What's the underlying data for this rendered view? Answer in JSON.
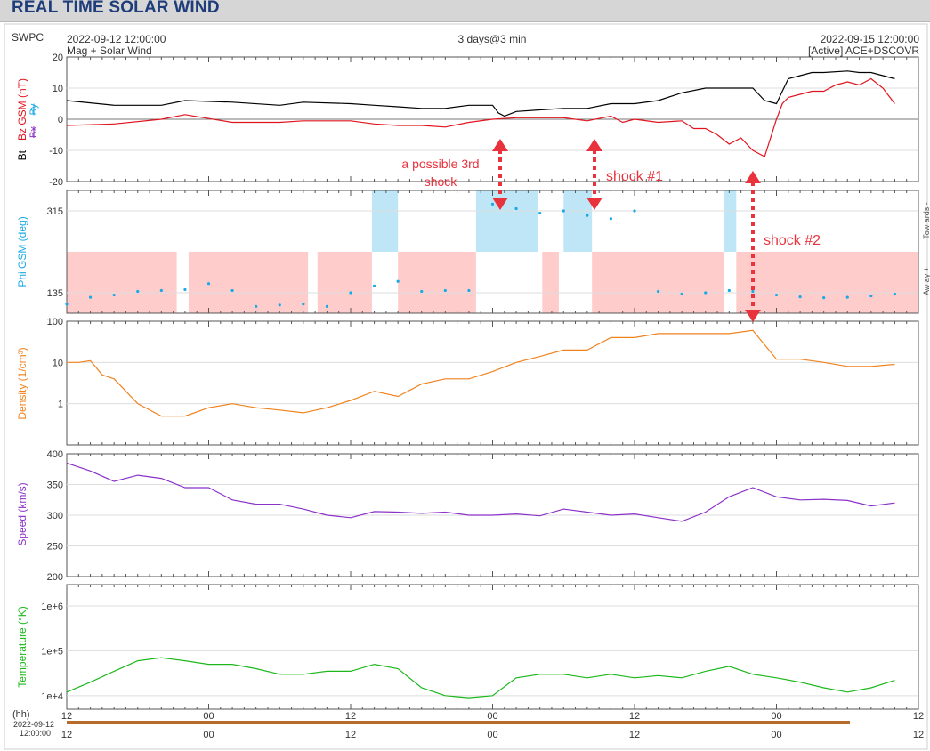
{
  "page_title": "REAL TIME SOLAR WIND",
  "header": {
    "source": "SWPC",
    "start": "2022-09-12 12:00:00",
    "span": "3 days@3 min",
    "end": "2022-09-15 12:00:00",
    "subtitle_left": "Mag + Solar Wind",
    "subtitle_right": "[Active] ACE+DSCOVR"
  },
  "annotations": [
    {
      "text": "a possible 3rd",
      "color": "#e8323c"
    },
    {
      "text": "shock",
      "color": "#e8323c"
    },
    {
      "text": "shock #1",
      "color": "#e8323c"
    },
    {
      "text": "shock #2",
      "color": "#e8323c"
    }
  ],
  "x_axis": {
    "hh_label": "(hh)",
    "date_label": "2022-09-12",
    "time_label": "12:00:00",
    "ticks": [
      "12",
      "00",
      "12",
      "00",
      "12",
      "00",
      "12"
    ]
  },
  "colors": {
    "bt": "#000000",
    "bz": "#e0141e",
    "by": "#8e44ad",
    "phi": "#19a9e5",
    "density": "#f0821e",
    "speed": "#8b32c8",
    "temperature": "#1cb81c",
    "away_fill": "#ffcccc",
    "toward_fill": "#bfe6f7"
  },
  "chart_data": [
    {
      "type": "line",
      "panel": "magnetic field",
      "ylabel_parts": [
        "Bt",
        "Bz GSM (nT)",
        "Bx",
        "By"
      ],
      "ylim": [
        -20,
        20
      ],
      "yticks": [
        "20",
        "10",
        "0",
        "-10",
        "-20"
      ],
      "xlim_hours": [
        0,
        72
      ],
      "series": [
        {
          "name": "Bt",
          "color": "#000000",
          "x": [
            0,
            4,
            8,
            10,
            14,
            18,
            20,
            24,
            26,
            28,
            30,
            32,
            34,
            36,
            36.5,
            37,
            38,
            40,
            42,
            44,
            46,
            47,
            48,
            50,
            52,
            54,
            56,
            58,
            59,
            60,
            60.5,
            61,
            62,
            63,
            64,
            66,
            67,
            68,
            69,
            70
          ],
          "y": [
            6,
            4.5,
            4.5,
            6,
            5.5,
            4.5,
            5.5,
            5,
            4.5,
            4,
            3.5,
            3.5,
            4.5,
            4.5,
            2,
            1,
            2.5,
            3,
            3.5,
            3.5,
            5,
            5,
            5,
            6,
            8.5,
            10,
            10,
            10,
            6,
            5,
            9,
            13,
            14,
            15,
            15,
            15.5,
            15,
            15,
            14,
            13
          ]
        },
        {
          "name": "Bz GSM",
          "color": "#e0141e",
          "x": [
            0,
            4,
            8,
            10,
            14,
            18,
            20,
            24,
            26,
            28,
            30,
            32,
            34,
            36,
            38,
            40,
            42,
            44,
            46,
            47,
            48,
            50,
            52,
            53,
            54,
            55,
            56,
            57,
            58,
            59,
            60,
            60.5,
            61,
            62,
            63,
            64,
            65,
            66,
            67,
            68,
            69,
            70
          ],
          "y": [
            -2,
            -1.5,
            0,
            1.5,
            -1,
            -1,
            -0.5,
            -0.5,
            -1.5,
            -2,
            -2,
            -2.5,
            -1,
            0,
            0.5,
            0.5,
            0.5,
            -0.5,
            1,
            -1,
            0,
            -1,
            -0.5,
            -3,
            -3,
            -5,
            -8,
            -6,
            -10,
            -12,
            0,
            5,
            7,
            8,
            9,
            9,
            11,
            12,
            11,
            13,
            10,
            5
          ]
        }
      ]
    },
    {
      "type": "scatter",
      "panel": "phi",
      "ylabel": "Phi GSM (deg)",
      "ylim": [
        90,
        360
      ],
      "yticks": [
        "315",
        "135"
      ],
      "right_labels": [
        "Tow ards -",
        "Aw ay +"
      ],
      "series": [
        {
          "name": "Phi",
          "color": "#19a9e5",
          "x": [
            0,
            2,
            4,
            6,
            8,
            10,
            12,
            14,
            16,
            18,
            20,
            22,
            24,
            26,
            28,
            30,
            32,
            34,
            36,
            38,
            40,
            42,
            44,
            46,
            48,
            50,
            52,
            54,
            56,
            58,
            60,
            62,
            64,
            66,
            68,
            70
          ],
          "y": [
            110,
            125,
            130,
            138,
            140,
            142,
            155,
            140,
            105,
            108,
            110,
            105,
            135,
            150,
            160,
            138,
            140,
            140,
            330,
            320,
            310,
            315,
            305,
            298,
            315,
            138,
            132,
            135,
            140,
            138,
            130,
            126,
            124,
            125,
            128,
            132
          ]
        }
      ],
      "sector_bands": [
        {
          "sector": "away",
          "from": 0,
          "to": 9.3
        },
        {
          "sector": "away",
          "from": 10.3,
          "to": 20.4
        },
        {
          "sector": "away",
          "from": 21.2,
          "to": 25.8
        },
        {
          "sector": "toward",
          "from": 25.8,
          "to": 28
        },
        {
          "sector": "away",
          "from": 28,
          "to": 34.6
        },
        {
          "sector": "toward",
          "from": 34.6,
          "to": 39.8
        },
        {
          "sector": "away",
          "from": 40.2,
          "to": 41.6
        },
        {
          "sector": "toward",
          "from": 42,
          "to": 44.4
        },
        {
          "sector": "away",
          "from": 44.4,
          "to": 55.6
        },
        {
          "sector": "toward",
          "from": 55.6,
          "to": 56.6
        },
        {
          "sector": "away",
          "from": 56.6,
          "to": 72
        }
      ]
    },
    {
      "type": "line",
      "panel": "density",
      "ylabel": "Density (1/cm³)",
      "yscale": "log",
      "ylim": [
        0.1,
        100
      ],
      "yticks": [
        "100",
        "10",
        "1"
      ],
      "series": [
        {
          "name": "Density",
          "color": "#f0821e",
          "x": [
            0,
            1,
            2,
            3,
            4,
            6,
            8,
            10,
            12,
            14,
            16,
            18,
            20,
            22,
            24,
            26,
            28,
            30,
            32,
            34,
            36,
            38,
            40,
            42,
            44,
            46,
            48,
            50,
            52,
            54,
            56,
            58,
            60,
            62,
            64,
            66,
            68,
            70
          ],
          "y": [
            10,
            10,
            11,
            5,
            4,
            1,
            0.5,
            0.5,
            0.8,
            1,
            0.8,
            0.7,
            0.6,
            0.8,
            1.2,
            2,
            1.5,
            3,
            4,
            4,
            6,
            10,
            14,
            20,
            20,
            40,
            40,
            50,
            50,
            50,
            50,
            60,
            12,
            12,
            10,
            8,
            8,
            9
          ]
        }
      ]
    },
    {
      "type": "line",
      "panel": "speed",
      "ylabel": "Speed (km/s)",
      "ylim": [
        200,
        400
      ],
      "yticks": [
        "400",
        "350",
        "300",
        "250",
        "200"
      ],
      "series": [
        {
          "name": "Speed",
          "color": "#8b32c8",
          "x": [
            0,
            2,
            4,
            6,
            8,
            10,
            12,
            14,
            16,
            18,
            20,
            22,
            24,
            26,
            28,
            30,
            32,
            34,
            36,
            38,
            40,
            42,
            44,
            46,
            48,
            50,
            52,
            54,
            56,
            58,
            60,
            62,
            64,
            66,
            68,
            70
          ],
          "y": [
            385,
            372,
            355,
            365,
            360,
            345,
            345,
            325,
            318,
            318,
            310,
            300,
            296,
            306,
            305,
            303,
            305,
            300,
            300,
            302,
            299,
            310,
            305,
            300,
            302,
            296,
            290,
            305,
            330,
            345,
            330,
            325,
            326,
            324,
            315,
            320
          ]
        }
      ]
    },
    {
      "type": "line",
      "panel": "temperature",
      "ylabel": "Temperature (°K)",
      "yscale": "log",
      "ylim": [
        5000,
        3000000
      ],
      "yticks": [
        "1e+6",
        "1e+5",
        "1e+4"
      ],
      "series": [
        {
          "name": "Temperature",
          "color": "#1cb81c",
          "x": [
            0,
            2,
            4,
            6,
            8,
            10,
            12,
            14,
            16,
            18,
            20,
            22,
            24,
            26,
            28,
            30,
            32,
            34,
            36,
            38,
            40,
            42,
            44,
            46,
            48,
            50,
            52,
            54,
            56,
            58,
            60,
            62,
            64,
            66,
            68,
            70
          ],
          "y": [
            12000,
            20000,
            35000,
            60000,
            70000,
            60000,
            50000,
            50000,
            40000,
            30000,
            30000,
            35000,
            35000,
            50000,
            40000,
            15000,
            10000,
            9000,
            10000,
            25000,
            30000,
            30000,
            25000,
            30000,
            25000,
            28000,
            25000,
            35000,
            45000,
            30000,
            25000,
            20000,
            15000,
            12000,
            15000,
            22000
          ]
        }
      ]
    }
  ]
}
